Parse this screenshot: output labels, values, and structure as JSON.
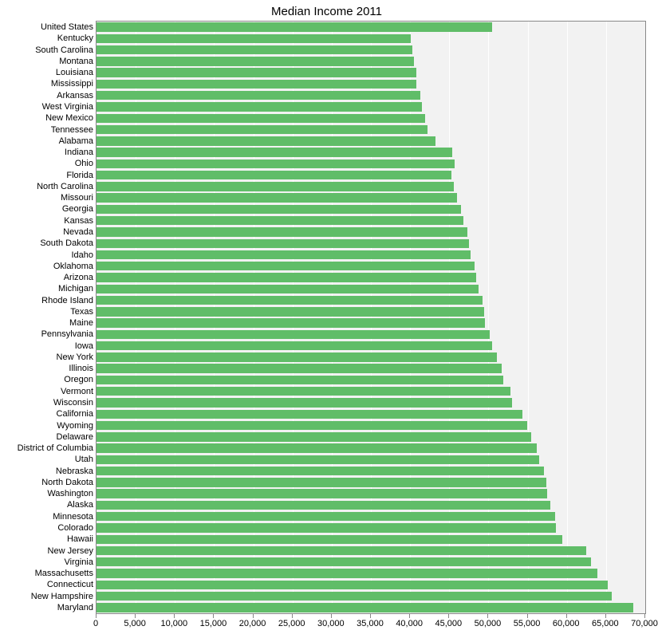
{
  "chart": {
    "type": "bar-horizontal",
    "title": "Median Income 2011",
    "title_fontsize": 15,
    "background_color": "#f2f2f2",
    "grid_color": "#ffffff",
    "border_color": "#888888",
    "bar_color": "#60bd68",
    "bar_inner_ratio": 0.8,
    "xlim": [
      0,
      70000
    ],
    "xtick_step": 5000,
    "xtick_labels": [
      "0",
      "5,000",
      "10,000",
      "15,000",
      "20,000",
      "25,000",
      "30,000",
      "35,000",
      "40,000",
      "45,000",
      "50,000",
      "55,000",
      "60,000",
      "65,000",
      "70,000"
    ],
    "label_fontsize": 11,
    "categories": [
      "United States",
      "Kentucky",
      "South Carolina",
      "Montana",
      "Louisiana",
      "Mississippi",
      "Arkansas",
      "West Virginia",
      "New Mexico",
      "Tennessee",
      "Alabama",
      "Indiana",
      "Ohio",
      "Florida",
      "North Carolina",
      "Missouri",
      "Georgia",
      "Kansas",
      "Nevada",
      "South Dakota",
      "Idaho",
      "Oklahoma",
      "Arizona",
      "Michigan",
      "Rhode Island",
      "Texas",
      "Maine",
      "Pennsylvania",
      "Iowa",
      "New York",
      "Illinois",
      "Oregon",
      "Vermont",
      "Wisconsin",
      "California",
      "Wyoming",
      "Delaware",
      "District of Columbia",
      "Utah",
      "Nebraska",
      "North Dakota",
      "Washington",
      "Alaska",
      "Minnesota",
      "Colorado",
      "Hawaii",
      "New Jersey",
      "Virginia",
      "Massachusetts",
      "Connecticut",
      "New Hampshire",
      "Maryland"
    ],
    "values": [
      50500,
      40100,
      40300,
      40500,
      40800,
      40800,
      41300,
      41500,
      41900,
      42200,
      43200,
      45400,
      45700,
      45300,
      45600,
      46000,
      46500,
      46800,
      47300,
      47500,
      47700,
      48200,
      48400,
      48700,
      49200,
      49400,
      49600,
      50200,
      50500,
      51100,
      51700,
      51900,
      52800,
      53000,
      54300,
      54900,
      55500,
      56200,
      56500,
      57100,
      57400,
      57500,
      57900,
      58500,
      58600,
      59400,
      62500,
      63100,
      63900,
      65200,
      65700,
      68500
    ]
  }
}
